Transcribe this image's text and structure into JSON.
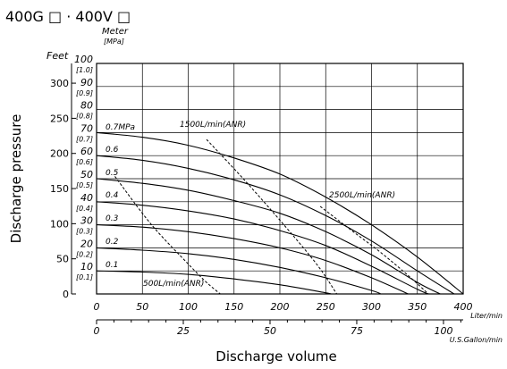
{
  "chart_data": {
    "type": "line",
    "title": "400G □ · 400V □",
    "xlabel": "Discharge volume",
    "ylabel": "Discharge pressure",
    "x_unit_primary": "Liter/min",
    "x_unit_secondary": "U.S.Gallon/min",
    "y_unit_meter": "Meter",
    "y_unit_mpa": "[MPa]",
    "y_unit_feet": "Feet",
    "xlim": [
      0,
      400
    ],
    "ylim": [
      0,
      100
    ],
    "grid": true,
    "x_ticks": [
      "0",
      "50",
      "100",
      "150",
      "200",
      "250",
      "300",
      "350",
      "400"
    ],
    "x_ticks_gallon": [
      "0",
      "25",
      "50",
      "75",
      "100"
    ],
    "y_ticks_meter": [
      "10",
      "20",
      "30",
      "40",
      "50",
      "60",
      "70",
      "80",
      "90",
      "100"
    ],
    "y_ticks_mpa": [
      "[0.1]",
      "[0.2]",
      "[0.3]",
      "[0.4]",
      "[0.5]",
      "[0.6]",
      "[0.7]",
      "[0.8]",
      "[0.9]",
      "[1.0]"
    ],
    "y_ticks_feet": [
      "0",
      "50",
      "100",
      "150",
      "200",
      "250",
      "300"
    ],
    "series": [
      {
        "name": "0.7MPa",
        "x": [
          0,
          50,
          100,
          150,
          200,
          250,
          300,
          350,
          400
        ],
        "y": [
          70,
          68,
          64.5,
          59,
          52,
          42,
          30,
          16,
          0
        ]
      },
      {
        "name": "0.6",
        "x": [
          0,
          50,
          100,
          150,
          200,
          250,
          300,
          350,
          390
        ],
        "y": [
          60,
          58,
          54.5,
          49.5,
          43,
          34,
          23,
          10,
          0
        ]
      },
      {
        "name": "0.5",
        "x": [
          0,
          50,
          100,
          150,
          200,
          250,
          300,
          350,
          375
        ],
        "y": [
          50,
          48,
          45,
          40.5,
          35,
          27,
          17,
          5,
          0
        ]
      },
      {
        "name": "0.4",
        "x": [
          0,
          50,
          100,
          150,
          200,
          250,
          300,
          350,
          362
        ],
        "y": [
          40,
          38.5,
          36,
          32.5,
          27.5,
          21,
          12,
          2,
          0
        ]
      },
      {
        "name": "0.3",
        "x": [
          0,
          50,
          100,
          150,
          200,
          250,
          300,
          340
        ],
        "y": [
          30,
          29,
          27,
          24,
          20,
          14.5,
          7,
          0
        ]
      },
      {
        "name": "0.2",
        "x": [
          0,
          50,
          100,
          150,
          200,
          250,
          300,
          310
        ],
        "y": [
          20,
          19,
          17.5,
          15,
          11.5,
          7,
          1.5,
          0
        ]
      },
      {
        "name": "0.1",
        "x": [
          0,
          50,
          100,
          150,
          200,
          250,
          255
        ],
        "y": [
          10,
          9.5,
          8.5,
          6.5,
          4,
          0.5,
          0
        ]
      }
    ],
    "air_consumption": [
      {
        "name": "500L/min(ANR)",
        "x": [
          20,
          60,
          100,
          120,
          135
        ],
        "y": [
          51,
          30,
          13,
          5,
          0
        ]
      },
      {
        "name": "1500L/min(ANR)",
        "x": [
          120,
          160,
          200,
          240,
          262
        ],
        "y": [
          67,
          50,
          32,
          13,
          0
        ]
      },
      {
        "name": "2500L/min(ANR)",
        "x": [
          244,
          280,
          310,
          340,
          362
        ],
        "y": [
          38,
          27,
          18,
          8,
          0
        ]
      }
    ],
    "curve_labels": [
      "0.7MPa",
      "0.6",
      "0.5",
      "0.4",
      "0.3",
      "0.2",
      "0.1"
    ],
    "air_labels": [
      "1500L/min(ANR)",
      "2500L/min(ANR)",
      "500L/min(ANR)"
    ]
  }
}
